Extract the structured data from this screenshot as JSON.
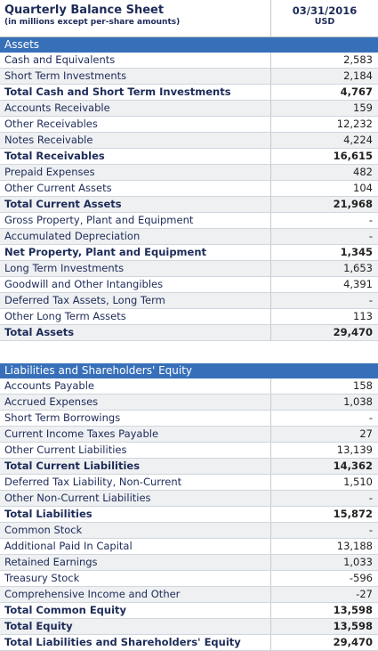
{
  "header": {
    "title": "Quarterly Balance Sheet",
    "subtitle": "(in millions except per-share amounts)",
    "date": "03/31/2016",
    "currency": "USD"
  },
  "assets": {
    "title": "Assets",
    "rows": [
      {
        "label": "Cash and Equivalents",
        "value": "2,583",
        "bold": false
      },
      {
        "label": "Short Term Investments",
        "value": "2,184",
        "bold": false
      },
      {
        "label": "Total Cash and Short Term Investments",
        "value": "4,767",
        "bold": true
      },
      {
        "label": "Accounts Receivable",
        "value": "159",
        "bold": false
      },
      {
        "label": "Other Receivables",
        "value": "12,232",
        "bold": false
      },
      {
        "label": "Notes Receivable",
        "value": "4,224",
        "bold": false
      },
      {
        "label": "Total Receivables",
        "value": "16,615",
        "bold": true
      },
      {
        "label": "Prepaid Expenses",
        "value": "482",
        "bold": false
      },
      {
        "label": "Other Current Assets",
        "value": "104",
        "bold": false
      },
      {
        "label": "Total Current Assets",
        "value": "21,968",
        "bold": true
      },
      {
        "label": "Gross Property, Plant and Equipment",
        "value": "-",
        "bold": false
      },
      {
        "label": "Accumulated Depreciation",
        "value": "-",
        "bold": false
      },
      {
        "label": "Net Property, Plant and Equipment",
        "value": "1,345",
        "bold": true
      },
      {
        "label": "Long Term Investments",
        "value": "1,653",
        "bold": false
      },
      {
        "label": "Goodwill and Other Intangibles",
        "value": "4,391",
        "bold": false
      },
      {
        "label": "Deferred Tax Assets, Long Term",
        "value": "-",
        "bold": false
      },
      {
        "label": "Other Long Term Assets",
        "value": "113",
        "bold": false
      },
      {
        "label": "Total Assets",
        "value": "29,470",
        "bold": true
      }
    ]
  },
  "liabilities": {
    "title": "Liabilities and Shareholders' Equity",
    "rows": [
      {
        "label": "Accounts Payable",
        "value": "158",
        "bold": false
      },
      {
        "label": "Accrued Expenses",
        "value": "1,038",
        "bold": false
      },
      {
        "label": "Short Term Borrowings",
        "value": "-",
        "bold": false
      },
      {
        "label": "Current Income Taxes Payable",
        "value": "27",
        "bold": false
      },
      {
        "label": "Other Current Liabilities",
        "value": "13,139",
        "bold": false
      },
      {
        "label": "Total Current Liabilities",
        "value": "14,362",
        "bold": true
      },
      {
        "label": "Deferred Tax Liability, Non-Current",
        "value": "1,510",
        "bold": false
      },
      {
        "label": "Other Non-Current Liabilities",
        "value": "-",
        "bold": false
      },
      {
        "label": "Total Liabilities",
        "value": "15,872",
        "bold": true
      },
      {
        "label": "Common Stock",
        "value": "-",
        "bold": false
      },
      {
        "label": "Additional Paid In Capital",
        "value": "13,188",
        "bold": false
      },
      {
        "label": "Retained Earnings",
        "value": "1,033",
        "bold": false
      },
      {
        "label": "Treasury Stock",
        "value": "-596",
        "bold": false
      },
      {
        "label": "Comprehensive Income and Other",
        "value": "-27",
        "bold": false
      },
      {
        "label": "Total Common Equity",
        "value": "13,598",
        "bold": true
      },
      {
        "label": "Total Equity",
        "value": "13,598",
        "bold": true
      },
      {
        "label": "Total Liabilities and Shareholders' Equity",
        "value": "29,470",
        "bold": true
      }
    ]
  }
}
